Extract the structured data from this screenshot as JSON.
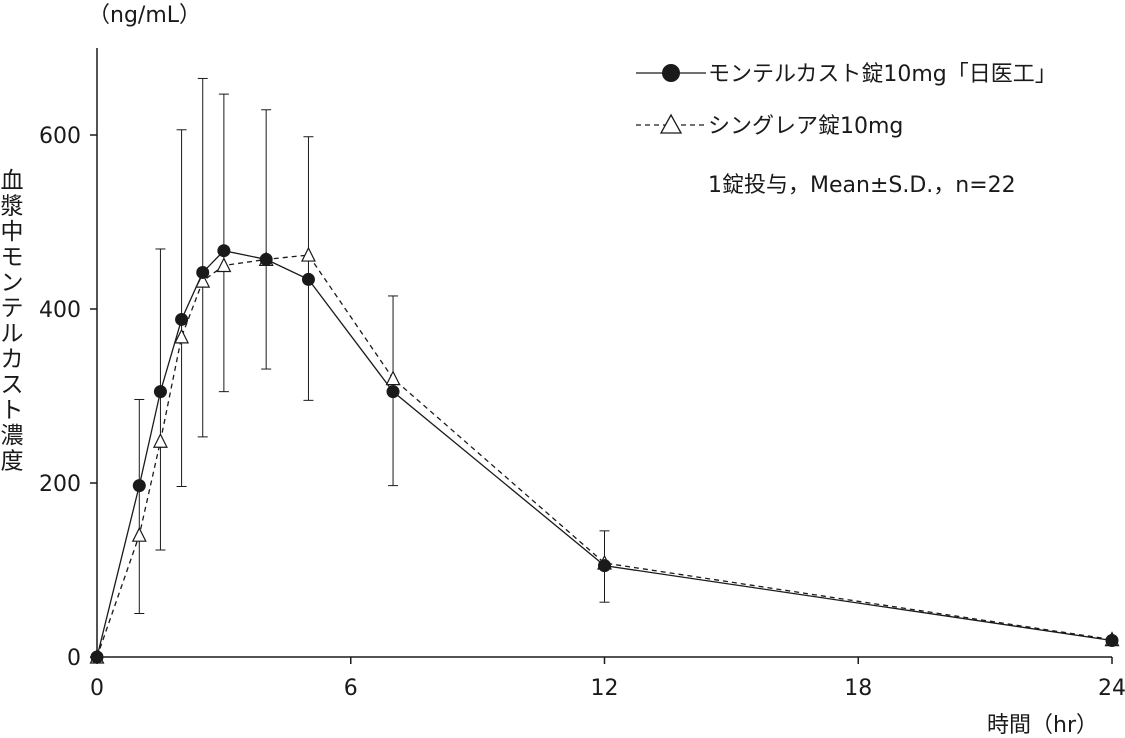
{
  "chart_data": {
    "type": "line",
    "y_unit": "（ng/mL）",
    "ylabel": "血漿中モンテルカスト濃度",
    "xlabel": "時間（hr）",
    "x_ticks": [
      "0",
      "6",
      "12",
      "18",
      "24"
    ],
    "y_ticks": [
      "0",
      "200",
      "400",
      "600"
    ],
    "xlim": [
      0,
      24
    ],
    "ylim": [
      0,
      700
    ],
    "note": "1錠投与，Mean±S.D.，n=22",
    "legend_position": "top-right",
    "series": [
      {
        "name": "モンテルカスト錠10mg「日医工」",
        "marker": "filled-circle",
        "line": "solid",
        "points": [
          {
            "x": 0,
            "y": 0
          },
          {
            "x": 1,
            "y": 197
          },
          {
            "x": 1.5,
            "y": 305
          },
          {
            "x": 2,
            "y": 388
          },
          {
            "x": 2.5,
            "y": 442
          },
          {
            "x": 3,
            "y": 467
          },
          {
            "x": 4,
            "y": 457
          },
          {
            "x": 5,
            "y": 434
          },
          {
            "x": 7,
            "y": 305
          },
          {
            "x": 12,
            "y": 105
          },
          {
            "x": 24,
            "y": 19
          }
        ]
      },
      {
        "name": "シングレア錠10mg",
        "marker": "open-triangle",
        "line": "dashed",
        "points": [
          {
            "x": 0,
            "y": 0
          },
          {
            "x": 1,
            "y": 140
          },
          {
            "x": 1.5,
            "y": 248
          },
          {
            "x": 2,
            "y": 368
          },
          {
            "x": 2.5,
            "y": 432
          },
          {
            "x": 3,
            "y": 450
          },
          {
            "x": 4,
            "y": 457
          },
          {
            "x": 5,
            "y": 462
          },
          {
            "x": 7,
            "y": 320
          },
          {
            "x": 12,
            "y": 108
          },
          {
            "x": 24,
            "y": 20
          }
        ]
      }
    ],
    "error_bars": [
      {
        "x": 1,
        "low": 50,
        "high": 296
      },
      {
        "x": 1.5,
        "low": 123,
        "high": 469
      },
      {
        "x": 2,
        "low": 196,
        "high": 606
      },
      {
        "x": 2.5,
        "low": 253,
        "high": 665
      },
      {
        "x": 3,
        "low": 305,
        "high": 647
      },
      {
        "x": 4,
        "low": 331,
        "high": 629
      },
      {
        "x": 5,
        "low": 295,
        "high": 598
      },
      {
        "x": 7,
        "low": 197,
        "high": 415
      },
      {
        "x": 12,
        "low": 63,
        "high": 145
      }
    ]
  }
}
